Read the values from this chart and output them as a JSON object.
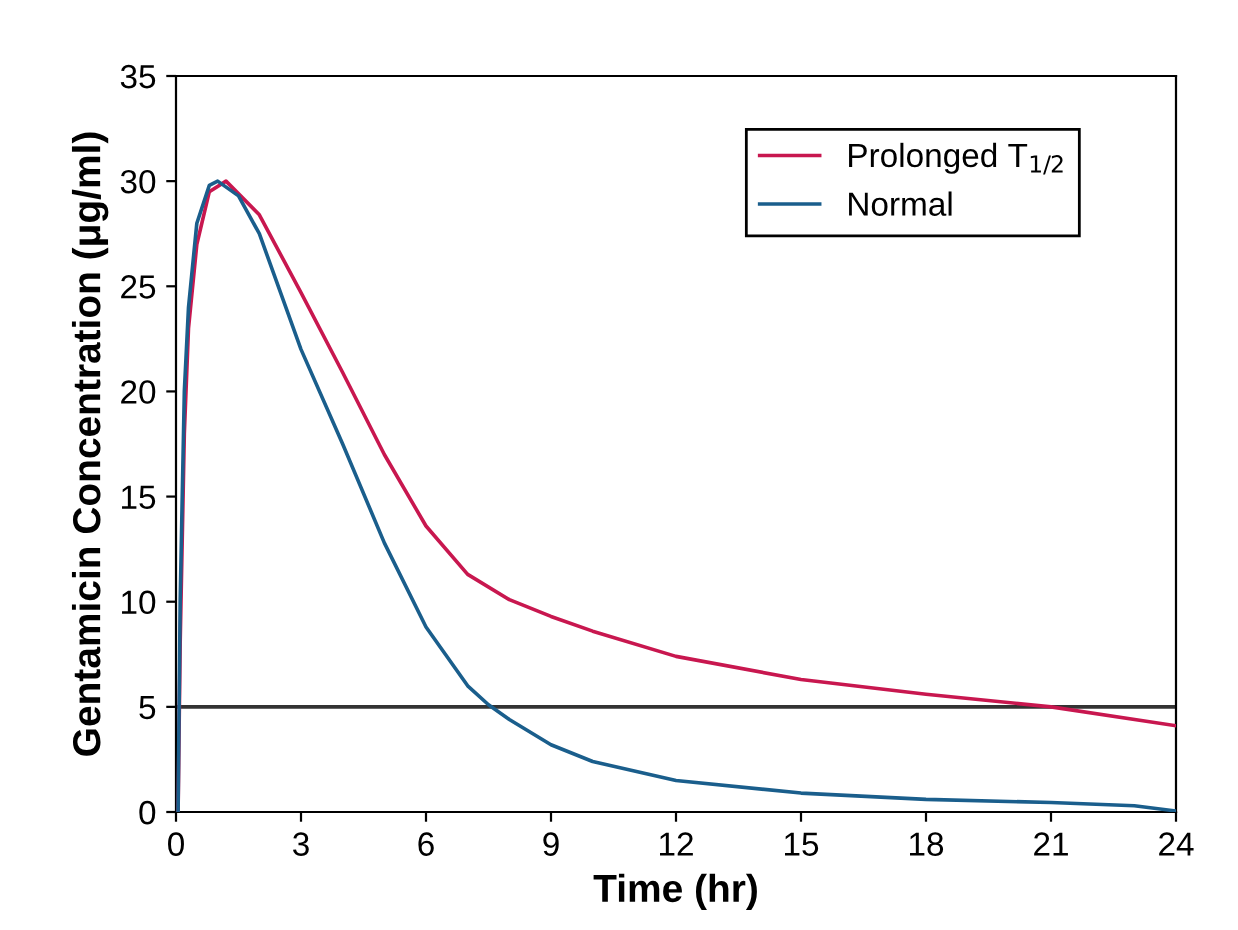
{
  "chart_data": {
    "type": "line",
    "xlabel": "Time (hr)",
    "ylabel": "Gentamicin Concentration (μg/ml)",
    "xlim": [
      0,
      24
    ],
    "xticks": [
      0,
      3,
      6,
      9,
      12,
      15,
      18,
      21,
      24
    ],
    "ylim": [
      0,
      35
    ],
    "yticks": [
      0,
      5,
      10,
      15,
      20,
      25,
      30,
      35
    ],
    "grid": false,
    "legend": "top right",
    "marker": "none",
    "line_style": "solid",
    "ref_lines": [
      {
        "axis": "y",
        "value": 5,
        "label": null,
        "color": "#333333"
      }
    ],
    "series": [
      {
        "name": "Prolonged T$_{1/2}$",
        "color": "#c8174f",
        "x": [
          0.05,
          0.1,
          0.2,
          0.3,
          0.5,
          0.8,
          1.2,
          2,
          3,
          4,
          5,
          6,
          7,
          8,
          9,
          10,
          12,
          15,
          18,
          21,
          24
        ],
        "values": [
          0,
          8,
          18,
          23,
          27,
          29.5,
          30,
          28.4,
          24.7,
          20.9,
          17,
          13.6,
          11.3,
          10.1,
          9.3,
          8.6,
          7.4,
          6.3,
          5.6,
          5,
          4.1
        ]
      },
      {
        "name": "Normal",
        "color": "#1a5e8c",
        "x": [
          0.05,
          0.1,
          0.2,
          0.3,
          0.5,
          0.8,
          1.0,
          1.5,
          2,
          3,
          4,
          5,
          6,
          7,
          7.5,
          8,
          9,
          10,
          12,
          15,
          18,
          21,
          23,
          24
        ],
        "values": [
          0,
          10,
          20,
          24,
          28,
          29.8,
          30,
          29.3,
          27.5,
          22,
          17.5,
          12.8,
          8.8,
          6,
          5.1,
          4.4,
          3.2,
          2.4,
          1.5,
          0.9,
          0.6,
          0.45,
          0.3,
          0.05
        ]
      }
    ]
  }
}
